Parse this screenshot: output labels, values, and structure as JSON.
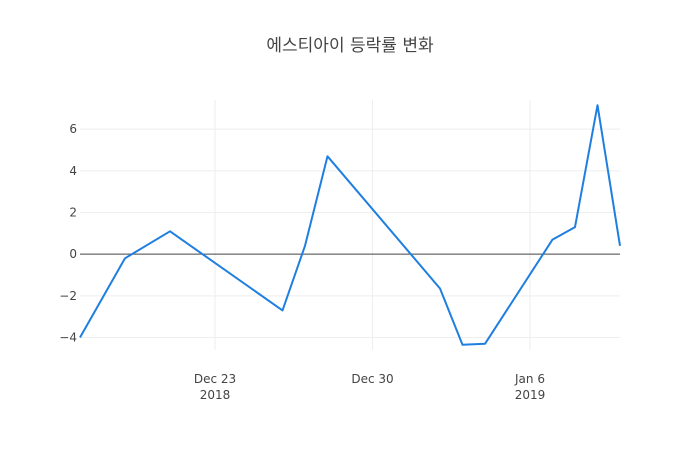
{
  "page": {
    "title": "에스티아이 등락률 변화"
  },
  "colors": {
    "line": "#1f7fe0",
    "grid": "#eeeeee",
    "zeroline": "#444444",
    "tick_text": "#444444"
  },
  "chart_data": {
    "type": "line",
    "title": "에스티아이 등락률 변화",
    "xlabel": "",
    "ylabel": "",
    "x_axis_type": "date",
    "xlim": [
      "2018-12-17",
      "2019-01-10"
    ],
    "ylim": [
      -4.6,
      7.4
    ],
    "grid": true,
    "legend": "none",
    "x_ticks": [
      {
        "date": "2018-12-23",
        "label": "Dec 23",
        "sublabel": "2018"
      },
      {
        "date": "2018-12-30",
        "label": "Dec 30",
        "sublabel": ""
      },
      {
        "date": "2019-01-06",
        "label": "Jan 6",
        "sublabel": "2019"
      }
    ],
    "y_ticks": [
      -4,
      -2,
      0,
      2,
      4,
      6
    ],
    "y_tick_labels": [
      "−4",
      "−2",
      "0",
      "2",
      "4",
      "6"
    ],
    "series": [
      {
        "x": [
          "2018-12-17",
          "2018-12-19",
          "2018-12-21",
          "2018-12-26",
          "2018-12-27",
          "2018-12-28",
          "2019-01-02",
          "2019-01-03",
          "2019-01-04",
          "2019-01-07",
          "2019-01-08",
          "2019-01-09",
          "2019-01-10"
        ],
        "values": [
          -4.0,
          -0.2,
          1.1,
          -2.7,
          0.4,
          4.7,
          -1.65,
          -4.35,
          -4.3,
          0.7,
          1.3,
          7.15,
          0.4
        ]
      }
    ]
  }
}
